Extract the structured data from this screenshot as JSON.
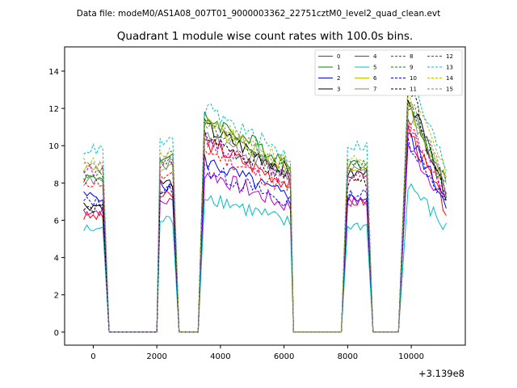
{
  "header": {
    "data_file": "Data file: modeM0/AS1A08_007T01_9000003362_22751cztM0_level2_quad_clean.evt"
  },
  "chart_data": {
    "type": "line",
    "title": "Quadrant 1 module wise count rates with 100.0s bins.",
    "xlabel": "",
    "ylabel": "",
    "x_offset_label": "+3.139e8",
    "xlim": [
      -900,
      11700
    ],
    "ylim": [
      -0.7,
      15.3
    ],
    "xticks": [
      0,
      2000,
      4000,
      6000,
      8000,
      10000
    ],
    "xtick_labels": [
      "0",
      "2000",
      "4000",
      "6000",
      "8000",
      "10000"
    ],
    "yticks": [
      0,
      2,
      4,
      6,
      8,
      10,
      12,
      14
    ],
    "ytick_labels": [
      "0",
      "2",
      "4",
      "6",
      "8",
      "10",
      "12",
      "14"
    ],
    "grid": false,
    "legend_position": "top-right",
    "segments": [
      {
        "start": -300,
        "end": 300
      },
      {
        "start": 2100,
        "end": 2500
      },
      {
        "start": 3500,
        "end": 6200
      },
      {
        "start": 8000,
        "end": 8600
      },
      {
        "start": 9900,
        "end": 11100
      }
    ],
    "gap_x": [
      500,
      1000,
      1500,
      2000,
      2700,
      3000,
      3300,
      6300,
      6800,
      7300,
      7800,
      8800,
      9200,
      9600
    ],
    "series": [
      {
        "name": "0",
        "color": "#ff0000",
        "dashed": false,
        "levels": [
          6.2,
          7.3,
          10.2,
          7.0,
          11.0
        ],
        "end_level": 6.5
      },
      {
        "name": "1",
        "color": "#008000",
        "dashed": false,
        "levels": [
          8.3,
          9.3,
          11.6,
          9.0,
          12.3
        ],
        "end_level": 7.5
      },
      {
        "name": "2",
        "color": "#0000ff",
        "dashed": false,
        "levels": [
          7.3,
          7.8,
          9.2,
          7.2,
          10.6
        ],
        "end_level": 7.0
      },
      {
        "name": "3",
        "color": "#000000",
        "dashed": false,
        "levels": [
          6.8,
          8.0,
          11.0,
          8.5,
          12.8
        ],
        "end_level": 7.5
      },
      {
        "name": "4",
        "color": "#bf00bf",
        "dashed": false,
        "levels": [
          6.5,
          7.0,
          8.6,
          7.0,
          10.0
        ],
        "end_level": 7.0
      },
      {
        "name": "5",
        "color": "#00bfbf",
        "dashed": false,
        "levels": [
          5.5,
          6.0,
          7.4,
          5.7,
          8.0
        ],
        "end_level": 5.5
      },
      {
        "name": "6",
        "color": "#bfbf00",
        "dashed": false,
        "levels": [
          8.8,
          8.8,
          11.2,
          8.8,
          12.0
        ],
        "end_level": 8.0
      },
      {
        "name": "7",
        "color": "#808080",
        "dashed": false,
        "levels": [
          8.1,
          9.0,
          10.7,
          8.6,
          11.7
        ],
        "end_level": 7.8
      },
      {
        "name": "8",
        "color": "#ff0000",
        "dashed": true,
        "levels": [
          8.0,
          8.3,
          9.8,
          8.2,
          11.3
        ],
        "end_level": 7.2
      },
      {
        "name": "9",
        "color": "#008000",
        "dashed": true,
        "levels": [
          8.5,
          9.2,
          11.0,
          9.0,
          12.5
        ],
        "end_level": 8.0
      },
      {
        "name": "10",
        "color": "#0000ff",
        "dashed": true,
        "levels": [
          7.0,
          7.6,
          8.8,
          7.4,
          10.3
        ],
        "end_level": 7.0
      },
      {
        "name": "11",
        "color": "#000000",
        "dashed": true,
        "levels": [
          6.6,
          7.6,
          10.5,
          8.0,
          13.3
        ],
        "end_level": 7.5
      },
      {
        "name": "12",
        "color": "#bf00bf",
        "dashed": true,
        "levels": [
          8.7,
          9.1,
          10.4,
          8.5,
          11.0
        ],
        "end_level": 7.5
      },
      {
        "name": "13",
        "color": "#00bfbf",
        "dashed": true,
        "levels": [
          9.8,
          10.2,
          12.0,
          10.0,
          13.8
        ],
        "end_level": 8.8
      },
      {
        "name": "14",
        "color": "#bfbf00",
        "dashed": true,
        "levels": [
          9.1,
          9.6,
          11.5,
          9.3,
          13.0
        ],
        "end_level": 8.5
      },
      {
        "name": "15",
        "color": "#808080",
        "dashed": true,
        "levels": [
          8.9,
          9.4,
          11.3,
          9.0,
          12.5
        ],
        "end_level": 8.2
      }
    ]
  }
}
